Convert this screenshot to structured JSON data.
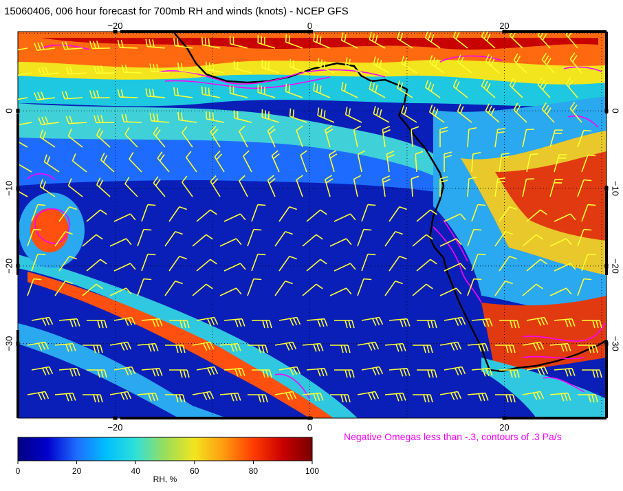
{
  "title": "15060406, 006 hour forecast for 700mb RH and winds (knots) - NCEP GFS",
  "note": "Negative Omegas less than -.3, contours of .3 Pa/s",
  "map": {
    "lon_range": [
      -30,
      30.5
    ],
    "lat_range": [
      -39.6,
      10.2
    ],
    "lon_ticks": [
      {
        "value": -20,
        "label": "−20"
      },
      {
        "value": 0,
        "label": "0"
      },
      {
        "value": 20,
        "label": "20"
      }
    ],
    "lat_ticks": [
      {
        "value": 0,
        "label": "0"
      },
      {
        "value": -10,
        "label": "−10"
      },
      {
        "value": -20,
        "label": "−20"
      },
      {
        "value": -30,
        "label": "−30"
      }
    ],
    "gridlines": "dotted",
    "barb_color": "#ffff33",
    "omega_contour_color": "#ff00ff",
    "coastline_color": "#000000"
  },
  "colorbar": {
    "label": "RH, %",
    "ticks": [
      "0",
      "20",
      "40",
      "60",
      "80",
      "100"
    ],
    "colors": [
      "#000080",
      "#0000cd",
      "#1e6cff",
      "#00bfff",
      "#30e0d8",
      "#9ade5a",
      "#f2e51e",
      "#ff9a10",
      "#ff3c00",
      "#c80000",
      "#7a0000"
    ]
  }
}
